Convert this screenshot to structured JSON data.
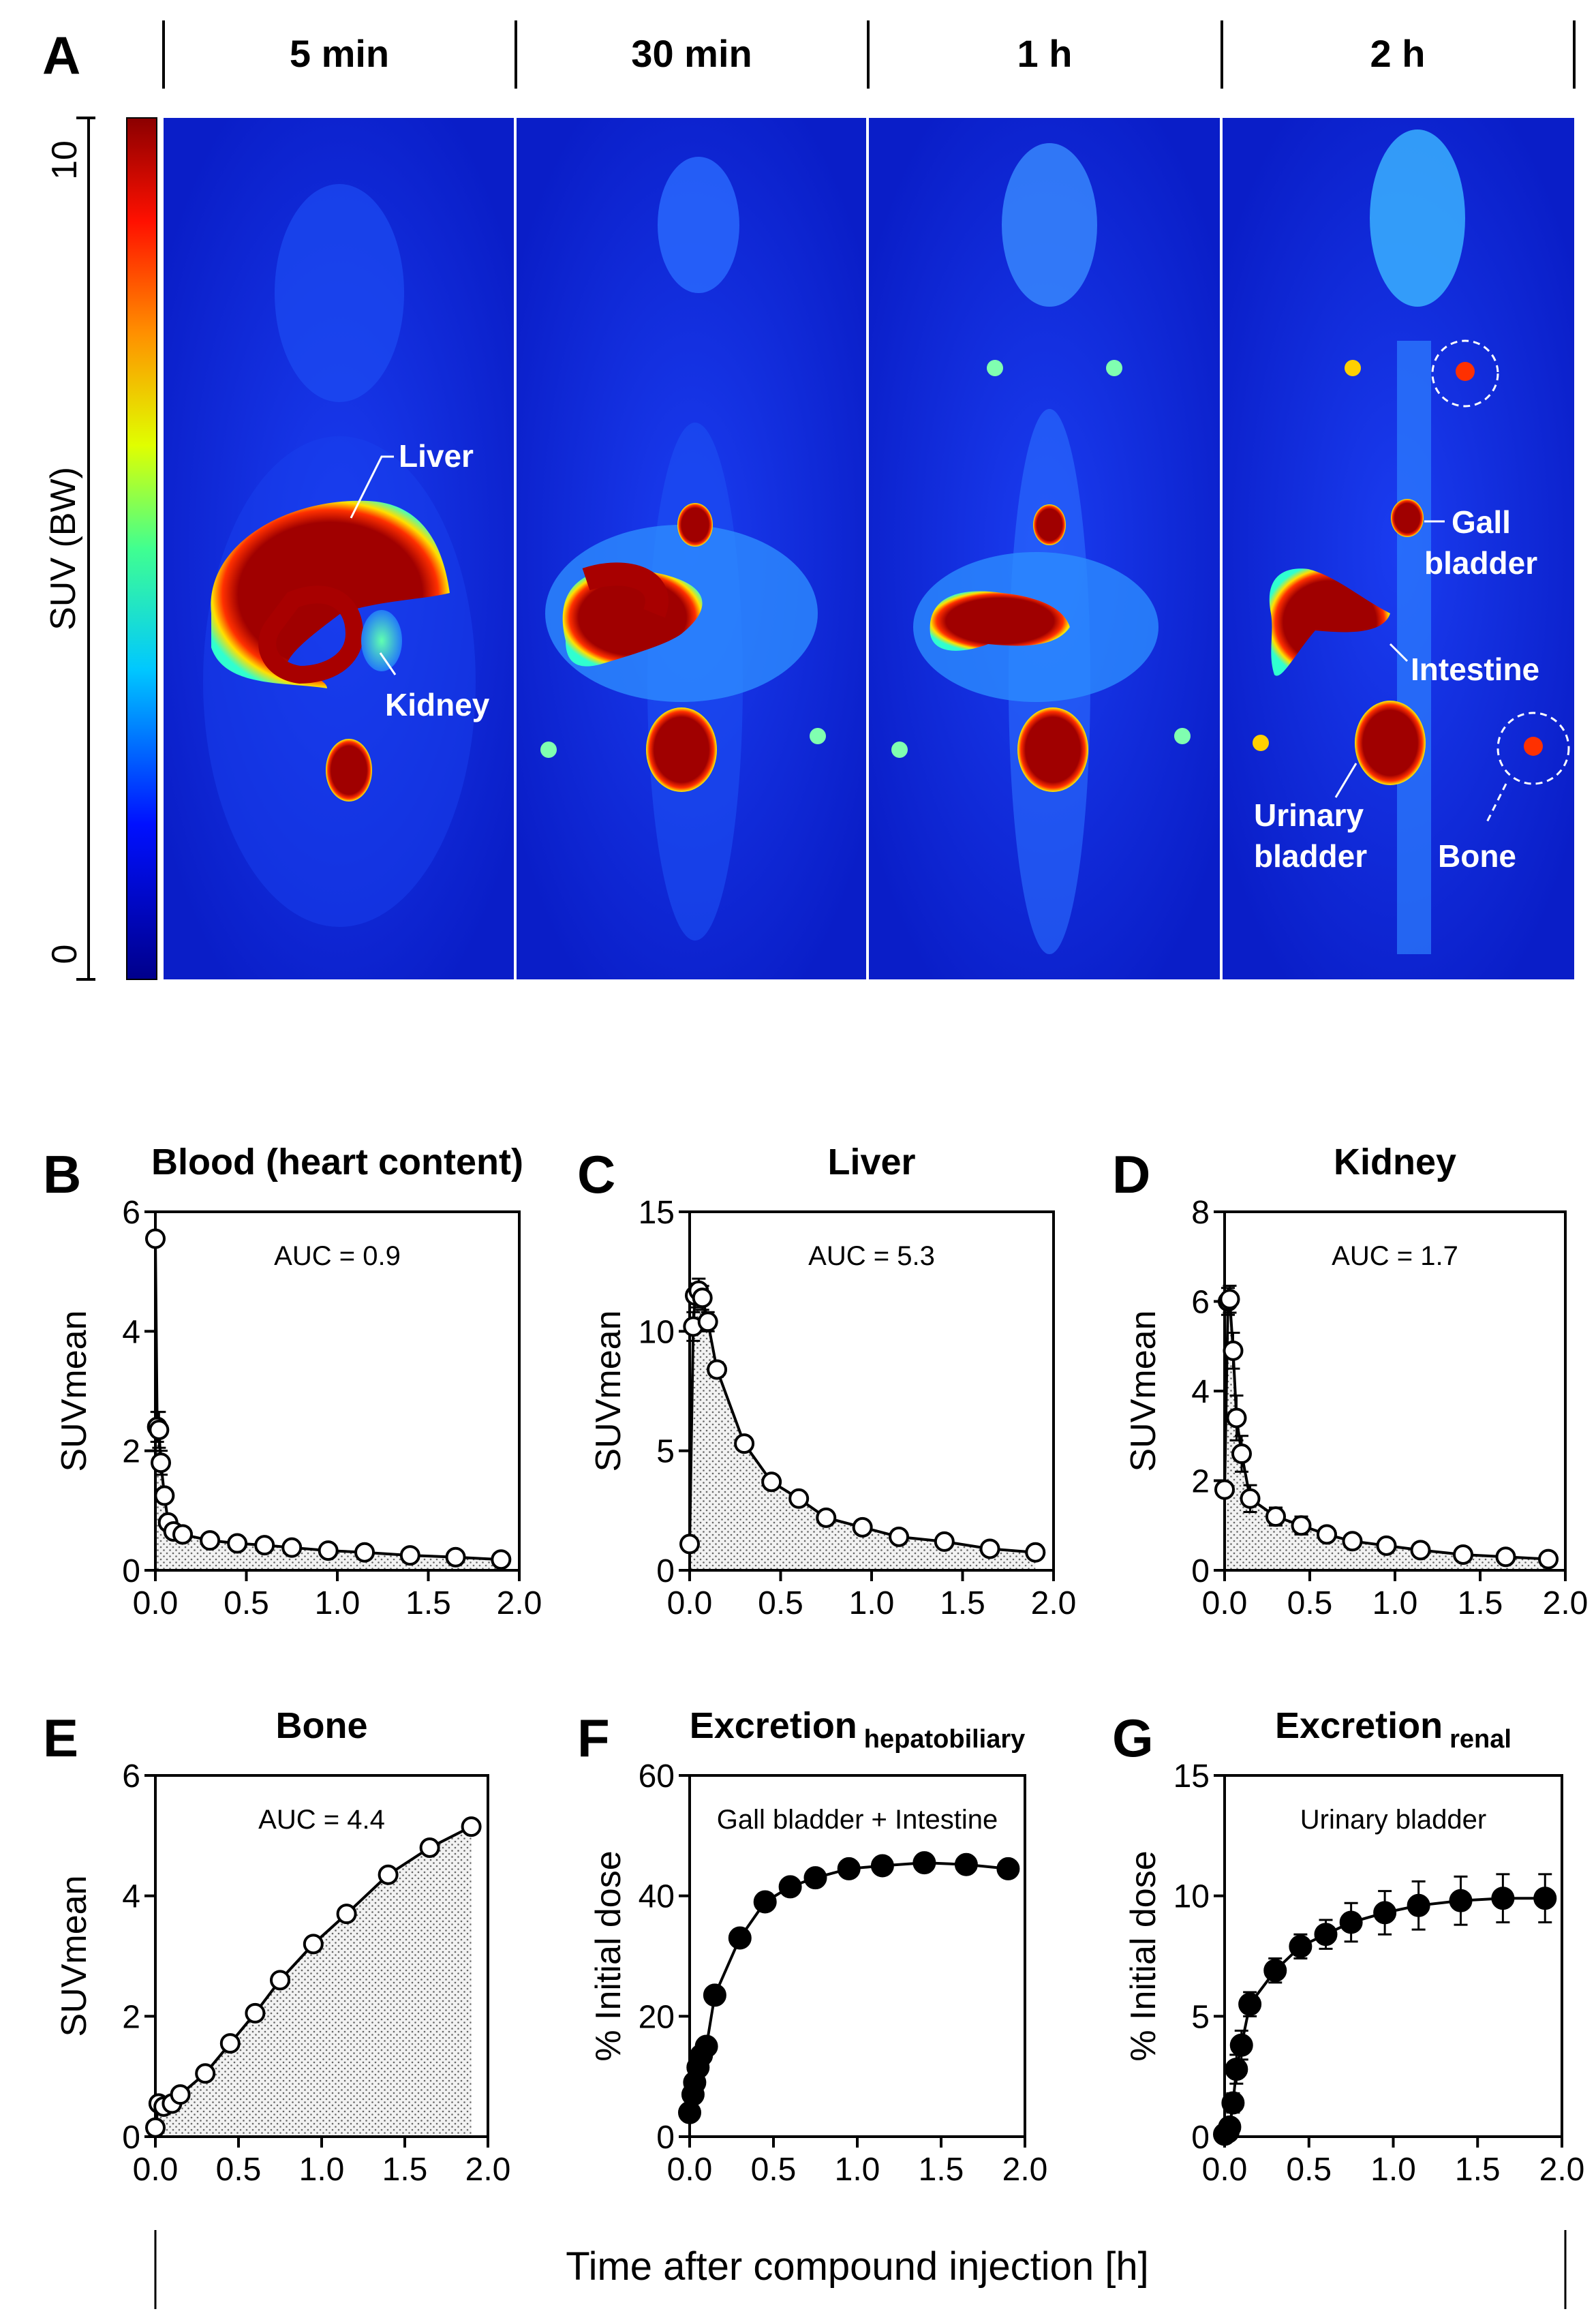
{
  "panel_a": {
    "letter": "A",
    "timepoints": [
      "5 min",
      "30 min",
      "1 h",
      "2 h"
    ],
    "colorbar": {
      "label": "SUV (BW)",
      "max_label": "10",
      "min_label": "0",
      "max": 10,
      "min": 0
    },
    "organ_labels": {
      "liver": "Liver",
      "kidney": "Kidney",
      "gall_bladder_1": "Gall",
      "gall_bladder_2": "bladder",
      "intestine": "Intestine",
      "urinary_bladder_1": "Urinary",
      "urinary_bladder_2": "bladder",
      "bone": "Bone"
    }
  },
  "x_axis_label": "Time after compound injection [h]",
  "colors": {
    "line": "#000000",
    "marker_fill_open": "#ffffff",
    "marker_fill_solid": "#000000",
    "pet_background": "#0a22d8",
    "pet_hot": "#a80000"
  },
  "chart_data": [
    {
      "panel": "B",
      "type": "line",
      "title": "Blood (heart content)",
      "ylabel": "SUVmean",
      "xlabel": "",
      "xlim": [
        0,
        2.0
      ],
      "ylim": [
        0,
        6
      ],
      "xticks": [
        "0.0",
        "0.5",
        "1.0",
        "1.5",
        "2.0"
      ],
      "yticks": [
        "0",
        "2",
        "4",
        "6"
      ],
      "annotation": "AUC = 0.9",
      "marker": "open",
      "shaded_auc": true,
      "x": [
        0.0,
        0.01,
        0.02,
        0.03,
        0.05,
        0.07,
        0.1,
        0.15,
        0.3,
        0.45,
        0.6,
        0.75,
        0.95,
        1.15,
        1.4,
        1.65,
        1.9
      ],
      "y": [
        5.55,
        2.4,
        2.35,
        1.8,
        1.25,
        0.8,
        0.65,
        0.6,
        0.5,
        0.45,
        0.42,
        0.38,
        0.33,
        0.3,
        0.25,
        0.22,
        0.18
      ],
      "err": [
        0.1,
        0.25,
        0.3,
        0.2,
        0.1,
        0.05,
        0.05,
        0.05,
        0.03,
        0.03,
        0.03,
        0.03,
        0.03,
        0.03,
        0.02,
        0.02,
        0.02
      ]
    },
    {
      "panel": "C",
      "type": "line",
      "title": "Liver",
      "ylabel": "SUVmean",
      "xlabel": "",
      "xlim": [
        0,
        2.0
      ],
      "ylim": [
        0,
        15
      ],
      "xticks": [
        "0.0",
        "0.5",
        "1.0",
        "1.5",
        "2.0"
      ],
      "yticks": [
        "0",
        "5",
        "10",
        "15"
      ],
      "annotation": "AUC = 5.3",
      "marker": "open",
      "shaded_auc": true,
      "x": [
        0.0,
        0.02,
        0.03,
        0.05,
        0.07,
        0.1,
        0.15,
        0.3,
        0.45,
        0.6,
        0.75,
        0.95,
        1.15,
        1.4,
        1.65,
        1.9
      ],
      "y": [
        1.1,
        10.2,
        11.5,
        11.7,
        11.4,
        10.4,
        8.4,
        5.3,
        3.7,
        3.0,
        2.2,
        1.8,
        1.4,
        1.2,
        0.9,
        0.75
      ],
      "err": [
        0.1,
        0.6,
        0.5,
        0.5,
        0.5,
        0.4,
        0.3,
        0.2,
        0.15,
        0.1,
        0.1,
        0.1,
        0.1,
        0.1,
        0.05,
        0.05
      ]
    },
    {
      "panel": "D",
      "type": "line",
      "title": "Kidney",
      "ylabel": "SUVmean",
      "xlabel": "",
      "xlim": [
        0,
        2.0
      ],
      "ylim": [
        0,
        8
      ],
      "xticks": [
        "0.0",
        "0.5",
        "1.0",
        "1.5",
        "2.0"
      ],
      "yticks": [
        "0",
        "2",
        "4",
        "6",
        "8"
      ],
      "annotation": "AUC = 1.7",
      "marker": "open",
      "shaded_auc": true,
      "x": [
        0.0,
        0.02,
        0.03,
        0.05,
        0.07,
        0.1,
        0.15,
        0.3,
        0.45,
        0.6,
        0.75,
        0.95,
        1.15,
        1.4,
        1.65,
        1.9
      ],
      "y": [
        1.8,
        6.0,
        6.05,
        4.9,
        3.4,
        2.6,
        1.6,
        1.2,
        1.0,
        0.8,
        0.65,
        0.55,
        0.45,
        0.35,
        0.3,
        0.25
      ],
      "err": [
        0.15,
        0.3,
        0.3,
        0.4,
        0.5,
        0.4,
        0.3,
        0.2,
        0.2,
        0.1,
        0.1,
        0.05,
        0.05,
        0.05,
        0.05,
        0.05
      ]
    },
    {
      "panel": "E",
      "type": "line",
      "title": "Bone",
      "ylabel": "SUVmean",
      "xlabel": "",
      "xlim": [
        0,
        2.0
      ],
      "ylim": [
        0,
        6
      ],
      "xticks": [
        "0.0",
        "0.5",
        "1.0",
        "1.5",
        "2.0"
      ],
      "yticks": [
        "0",
        "2",
        "4",
        "6"
      ],
      "annotation": "AUC = 4.4",
      "marker": "open",
      "shaded_auc": true,
      "x": [
        0.0,
        0.02,
        0.05,
        0.1,
        0.15,
        0.3,
        0.45,
        0.6,
        0.75,
        0.95,
        1.15,
        1.4,
        1.65,
        1.9
      ],
      "y": [
        0.15,
        0.55,
        0.5,
        0.55,
        0.7,
        1.05,
        1.55,
        2.05,
        2.6,
        3.2,
        3.7,
        4.35,
        4.8,
        5.15
      ],
      "err": [
        0.02,
        0.05,
        0.05,
        0.05,
        0.05,
        0.05,
        0.05,
        0.05,
        0.05,
        0.05,
        0.05,
        0.05,
        0.05,
        0.05
      ]
    },
    {
      "panel": "F",
      "type": "line",
      "title": "Excretion",
      "title_subscript": "hepatobiliary",
      "ylabel": "% Initial dose",
      "xlabel": "",
      "xlim": [
        0,
        2.0
      ],
      "ylim": [
        0,
        60
      ],
      "xticks": [
        "0.0",
        "0.5",
        "1.0",
        "1.5",
        "2.0"
      ],
      "yticks": [
        "0",
        "20",
        "40",
        "60"
      ],
      "annotation": "Gall bladder + Intestine",
      "marker": "filled",
      "shaded_auc": false,
      "x": [
        0.0,
        0.02,
        0.03,
        0.05,
        0.07,
        0.1,
        0.15,
        0.3,
        0.45,
        0.6,
        0.75,
        0.95,
        1.15,
        1.4,
        1.65,
        1.9
      ],
      "y": [
        4.0,
        7.0,
        9.0,
        11.5,
        13.5,
        15.0,
        23.5,
        33.0,
        39.0,
        41.5,
        43.0,
        44.5,
        45.0,
        45.5,
        45.2,
        44.5
      ],
      "err": [
        0.5,
        0.5,
        0.5,
        0.5,
        0.5,
        0.5,
        0.6,
        0.6,
        0.6,
        0.6,
        0.6,
        0.6,
        0.6,
        0.6,
        0.6,
        0.6
      ]
    },
    {
      "panel": "G",
      "type": "line",
      "title": "Excretion",
      "title_subscript": "renal",
      "ylabel": "% Initial dose",
      "xlabel": "",
      "xlim": [
        0,
        2.0
      ],
      "ylim": [
        0,
        15
      ],
      "xticks": [
        "0.0",
        "0.5",
        "1.0",
        "1.5",
        "2.0"
      ],
      "yticks": [
        "0",
        "5",
        "10",
        "15"
      ],
      "annotation": "Urinary bladder",
      "marker": "filled",
      "shaded_auc": false,
      "x": [
        0.0,
        0.02,
        0.03,
        0.05,
        0.07,
        0.1,
        0.15,
        0.3,
        0.45,
        0.6,
        0.75,
        0.95,
        1.15,
        1.4,
        1.65,
        1.9
      ],
      "y": [
        0.1,
        0.2,
        0.4,
        1.4,
        2.8,
        3.8,
        5.5,
        6.9,
        7.9,
        8.4,
        8.9,
        9.3,
        9.6,
        9.8,
        9.9,
        9.9
      ],
      "err": [
        0.05,
        0.1,
        0.2,
        0.4,
        0.6,
        0.6,
        0.5,
        0.5,
        0.5,
        0.6,
        0.8,
        0.9,
        1.0,
        1.0,
        1.0,
        1.0
      ]
    }
  ]
}
